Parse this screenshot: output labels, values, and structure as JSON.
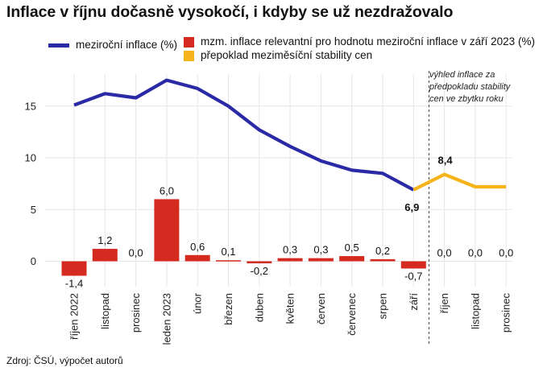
{
  "title": "Inflace v říjnu dočasně vysokočí, i kdyby se už nezdražovalo",
  "legend": {
    "line_label": "meziroční inflace (%)",
    "bar_label": "mzm. inflace relevantní pro hodnotu meziroční inflace v září 2023 (%)",
    "forecast_label": "přepoklad meziměsíční stability cen"
  },
  "annotation": "výhled inflace za předpokladu stability cen ve zbytku roku",
  "source": "Zdroj: ČSÚ, výpočet autorů",
  "colors": {
    "line": "#2b2aa6",
    "bar": "#d42a20",
    "forecast": "#f5b419",
    "grid": "#e6e6e6"
  },
  "chart_data": {
    "type": "bar",
    "categories": [
      "říjen 2022",
      "listopad",
      "prosinec",
      "leden 2023",
      "únor",
      "březen",
      "duben",
      "květen",
      "červen",
      "červenec",
      "srpen",
      "září",
      "říjen",
      "listopad",
      "prosinec"
    ],
    "series": [
      {
        "name": "mzm. inflace relevantní pro hodnotu meziroční inflace v září 2023 (%)",
        "type": "bar",
        "values": [
          -1.4,
          1.2,
          0.0,
          6.0,
          0.6,
          0.1,
          -0.2,
          0.3,
          0.3,
          0.5,
          0.2,
          -0.7,
          0.0,
          0.0,
          0.0
        ],
        "labels": [
          "-1,4",
          "1,2",
          "0,0",
          "6,0",
          "0,6",
          "0,1",
          "-0,2",
          "0,3",
          "0,3",
          "0,5",
          "0,2",
          "-0,7",
          "0,0",
          "0,0",
          "0,0"
        ]
      },
      {
        "name": "meziroční inflace (%)",
        "type": "line",
        "values": [
          15.1,
          16.2,
          15.8,
          17.5,
          16.7,
          15.0,
          12.7,
          11.1,
          9.7,
          8.8,
          8.5,
          6.9,
          null,
          null,
          null
        ]
      },
      {
        "name": "přepoklad meziměsíční stability cen",
        "type": "line",
        "values": [
          null,
          null,
          null,
          null,
          null,
          null,
          null,
          null,
          null,
          null,
          null,
          6.9,
          8.4,
          7.2,
          7.2
        ]
      }
    ],
    "point_labels": [
      {
        "index": 11,
        "text": "6,9"
      },
      {
        "index": 12,
        "text": "8,4"
      }
    ],
    "yticks": [
      0,
      5,
      10,
      15
    ],
    "ytick_labels": [
      "0",
      "5",
      "10",
      "15"
    ],
    "ylim": [
      -3,
      19
    ],
    "divider_after_category": "září",
    "grid": true
  }
}
